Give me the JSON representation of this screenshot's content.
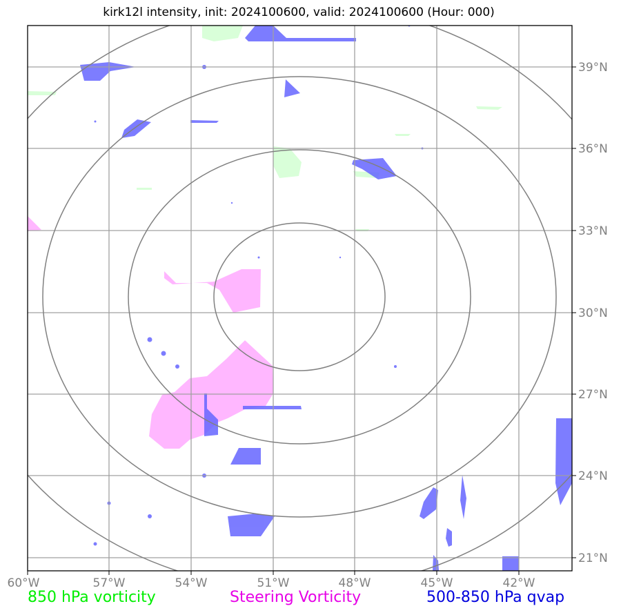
{
  "title": "kirk12l intensity, init: 2024100600, valid: 2024100600 (Hour: 000)",
  "lon_ticks": [
    "60°W",
    "57°W",
    "54°W",
    "51°W",
    "48°W",
    "45°W",
    "42°W"
  ],
  "lat_ticks": [
    "39°N",
    "36°N",
    "33°N",
    "30°N",
    "27°N",
    "24°N",
    "21°N"
  ],
  "legend": {
    "green": "850 hPa vorticity",
    "magenta": "Steering Vorticity",
    "blue": "500-850 hPa qvap"
  },
  "colors": {
    "green": "#00ee00",
    "magenta": "#e600e6",
    "blue": "#0000dd",
    "fill_green": "#ccffcc",
    "fill_magenta": "#ffaaff",
    "fill_blue": "#6666ff",
    "grid": "#a0a0a0",
    "rings": "#808080"
  }
}
